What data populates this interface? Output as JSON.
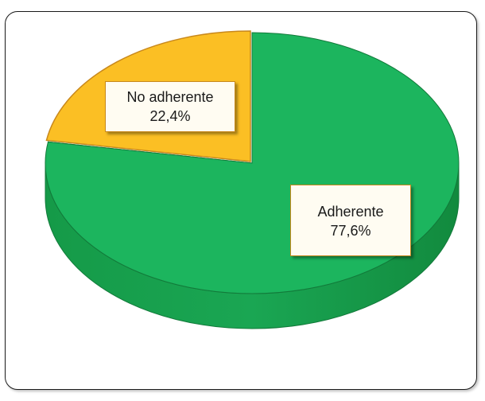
{
  "chart_data": {
    "type": "pie",
    "style": "3d",
    "slices": [
      {
        "label": "Adherente",
        "value": 77.6,
        "value_label": "77,6%",
        "color": "#1cb55e"
      },
      {
        "label": "No adherente",
        "value": 22.4,
        "value_label": "22,4%",
        "color": "#fbbf24"
      }
    ],
    "legend": "none"
  },
  "colors": {
    "adherente_top": "#1cb55e",
    "adherente_side": "#159a48",
    "adherente_edge": "#127a3a",
    "no_adherente_top": "#fbbf24",
    "no_adherente_edge": "#c8881c",
    "frame_border": "#1a1a1a",
    "label_border": "#c8881c"
  }
}
